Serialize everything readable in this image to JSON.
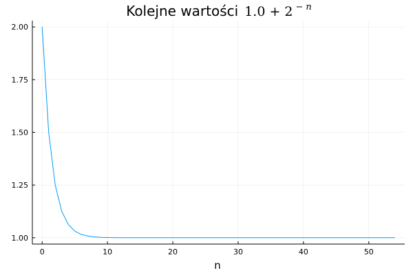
{
  "chart_data": {
    "type": "line",
    "title": {
      "text": "Kolejne wartości",
      "math_base": "1.0 + 2",
      "math_sup_sign": "−",
      "math_sup_var": "n"
    },
    "xlabel": "n",
    "ylabel": "",
    "xlim": [
      -1.5,
      55.5
    ],
    "ylim": [
      0.97,
      2.03
    ],
    "x_ticks": [
      0,
      10,
      20,
      30,
      40,
      50
    ],
    "x_tick_labels": [
      "0",
      "10",
      "20",
      "30",
      "40",
      "50"
    ],
    "y_ticks": [
      1.0,
      1.25,
      1.5,
      1.75,
      2.0
    ],
    "y_tick_labels": [
      "1.00",
      "1.25",
      "1.50",
      "1.75",
      "2.00"
    ],
    "grid": true,
    "legend": "none",
    "series": [
      {
        "color": "#009AFA",
        "x": [
          0,
          1,
          2,
          3,
          4,
          5,
          6,
          7,
          8,
          9,
          10,
          11,
          12,
          13,
          14,
          15,
          16,
          17,
          18,
          19,
          20,
          21,
          22,
          23,
          24,
          25,
          26,
          27,
          28,
          29,
          30,
          31,
          32,
          33,
          34,
          35,
          36,
          37,
          38,
          39,
          40,
          41,
          42,
          43,
          44,
          45,
          46,
          47,
          48,
          49,
          50,
          51,
          52,
          53,
          54
        ],
        "y": [
          2.0,
          1.5,
          1.25,
          1.125,
          1.0625,
          1.03125,
          1.015625,
          1.0078125,
          1.00390625,
          1.001953125,
          1.0009765625,
          1.00048828125,
          1.000244140625,
          1.0001220703125,
          1.00006103515625,
          1.000030517578125,
          1.0000152587890625,
          1.0000076293945312,
          1.0000038146972656,
          1.0000019073486328,
          1.0000009536743164,
          1.0,
          1.0,
          1.0,
          1.0,
          1.0,
          1.0,
          1.0,
          1.0,
          1.0,
          1.0,
          1.0,
          1.0,
          1.0,
          1.0,
          1.0,
          1.0,
          1.0,
          1.0,
          1.0,
          1.0,
          1.0,
          1.0,
          1.0,
          1.0,
          1.0,
          1.0,
          1.0,
          1.0,
          1.0,
          1.0,
          1.0,
          1.0,
          1.0,
          1.0
        ]
      }
    ]
  }
}
